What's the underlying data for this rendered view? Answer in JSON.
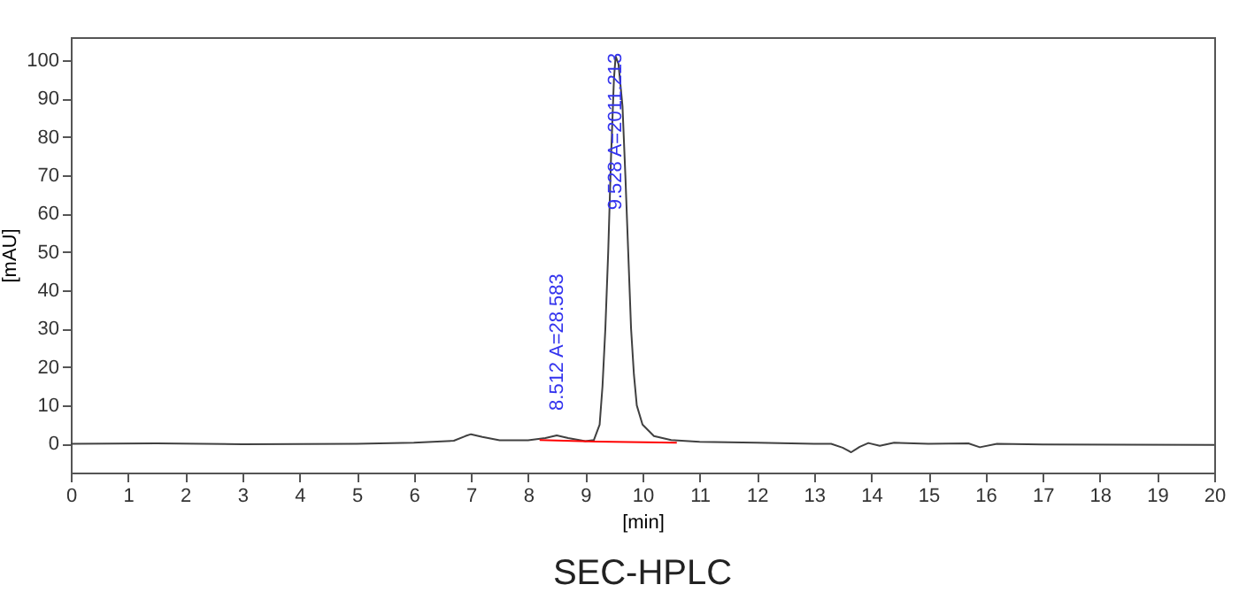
{
  "chart_data": {
    "type": "line",
    "title": "SEC-HPLC",
    "xlabel": "[min]",
    "ylabel": "[mAU]",
    "xlim": [
      0,
      20
    ],
    "xticks": [
      0,
      1,
      2,
      3,
      4,
      5,
      6,
      7,
      8,
      9,
      10,
      11,
      12,
      13,
      14,
      15,
      16,
      17,
      18,
      19,
      20
    ],
    "ylim": [
      -7.5,
      106
    ],
    "yticks": [
      0,
      10,
      20,
      30,
      40,
      50,
      60,
      70,
      80,
      90,
      100
    ],
    "grid": false,
    "marker": "none",
    "line_style": "solid",
    "series": [
      {
        "color": "#404040",
        "x": [
          0,
          1.5,
          3,
          5,
          6,
          6.7,
          6.9,
          7.0,
          7.2,
          7.5,
          8.0,
          8.3,
          8.5,
          8.7,
          9.0,
          9.15,
          9.25,
          9.3,
          9.35,
          9.4,
          9.45,
          9.5,
          9.53,
          9.58,
          9.65,
          9.7,
          9.75,
          9.8,
          9.85,
          9.9,
          10.0,
          10.2,
          10.5,
          11,
          12,
          13,
          13.3,
          13.5,
          13.65,
          13.8,
          13.95,
          14.15,
          14.4,
          15,
          15.7,
          15.9,
          16.2,
          17,
          20
        ],
        "values": [
          0,
          0.1,
          -0.1,
          0,
          0.3,
          0.8,
          2.0,
          2.5,
          1.8,
          0.9,
          0.9,
          1.5,
          2.2,
          1.5,
          0.7,
          1.0,
          5,
          15,
          30,
          50,
          75,
          95,
          101,
          99,
          88,
          70,
          50,
          30,
          18,
          10,
          5,
          2,
          1,
          0.5,
          0.3,
          0,
          0,
          -1,
          -2.2,
          -0.8,
          0.2,
          -0.5,
          0.3,
          0,
          0.1,
          -0.9,
          0,
          -0.2,
          -0.3
        ]
      },
      {
        "color": "#ff0000",
        "x": [
          8.2,
          9.2,
          10.6
        ],
        "values": [
          1.0,
          0.6,
          0.3
        ]
      }
    ],
    "annotations": [
      {
        "text": "8.512 A=28.583",
        "x": 8.512,
        "y": 2.2
      },
      {
        "text": "9.528 A=2011.213",
        "x": 9.528,
        "y": 101
      }
    ]
  }
}
